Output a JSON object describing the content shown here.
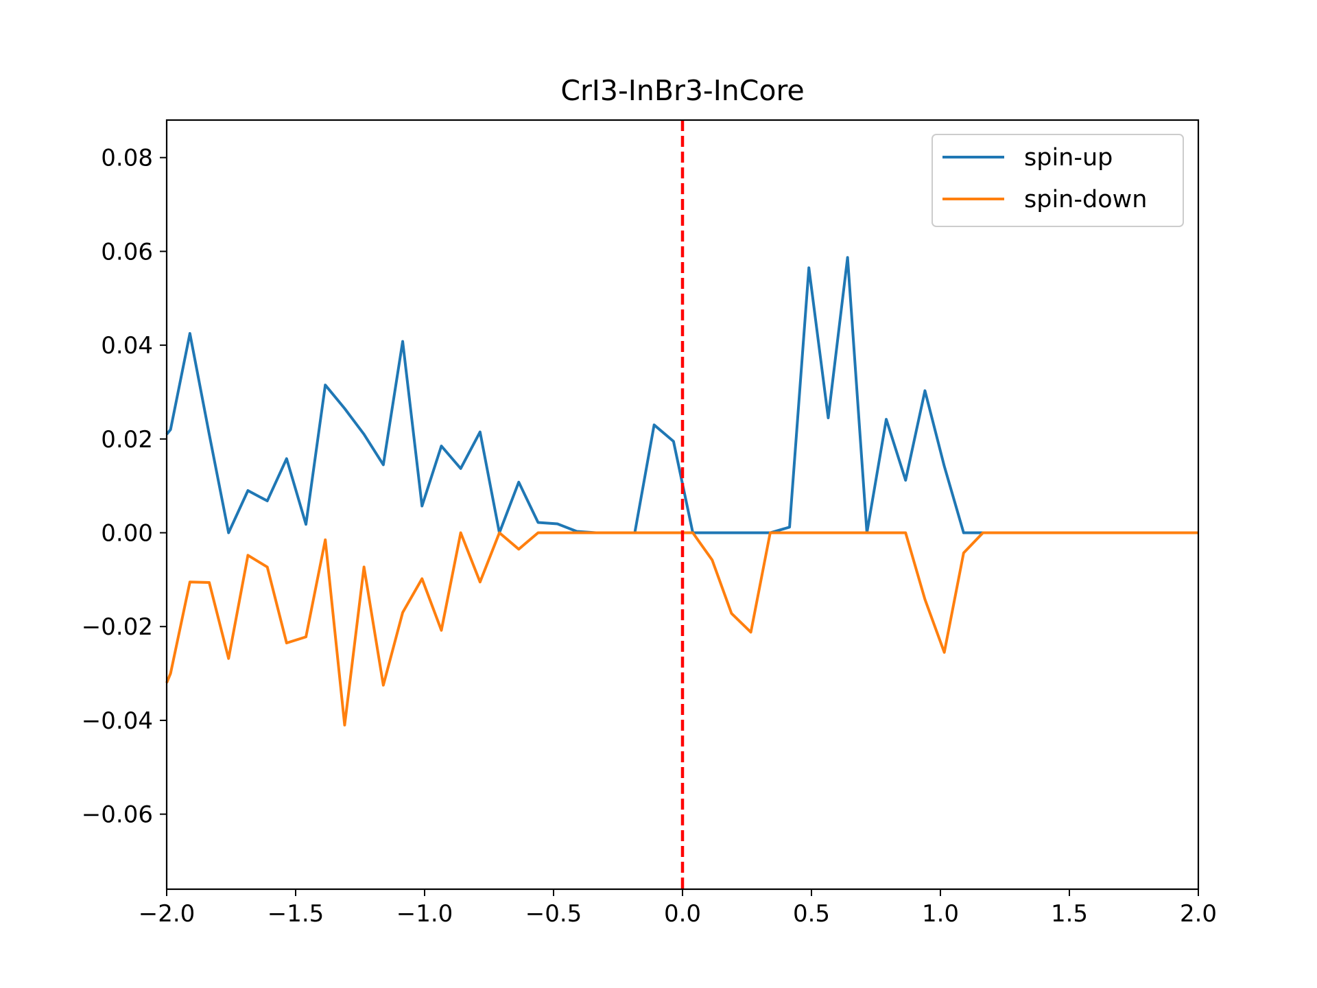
{
  "chart_data": {
    "type": "line",
    "title": "CrI3-InBr3-InCore",
    "xlabel": "",
    "ylabel": "",
    "xlim": [
      -2.0,
      2.0
    ],
    "ylim": [
      -0.076,
      0.088
    ],
    "xticks": [
      -2.0,
      -1.5,
      -1.0,
      -0.5,
      0.0,
      0.5,
      1.0,
      1.5,
      2.0
    ],
    "xtick_labels": [
      "−2.0",
      "−1.5",
      "−1.0",
      "−0.5",
      "0.0",
      "0.5",
      "1.0",
      "1.5",
      "2.0"
    ],
    "yticks": [
      0.08,
      0.06,
      0.04,
      0.02,
      0.0,
      -0.02,
      -0.04,
      -0.06
    ],
    "ytick_labels": [
      "0.08",
      "0.06",
      "0.04",
      "0.02",
      "0.00",
      "−0.02",
      "−0.04",
      "−0.06"
    ],
    "grid": false,
    "legend_position": "top-right",
    "vline": {
      "x": 0.0,
      "color": "#ff0000",
      "style": "dashed"
    },
    "series": [
      {
        "name": "spin-up",
        "color": "#1f77b4",
        "x": [
          -2.0,
          -1.985,
          -1.91,
          -1.835,
          -1.76,
          -1.685,
          -1.61,
          -1.535,
          -1.46,
          -1.385,
          -1.31,
          -1.235,
          -1.16,
          -1.085,
          -1.01,
          -0.935,
          -0.86,
          -0.785,
          -0.71,
          -0.635,
          -0.56,
          -0.485,
          -0.41,
          -0.335,
          -0.26,
          -0.185,
          -0.11,
          -0.035,
          0.04,
          0.115,
          0.19,
          0.265,
          0.34,
          0.415,
          0.49,
          0.565,
          0.64,
          0.715,
          0.79,
          0.865,
          0.94,
          1.015,
          1.09,
          1.165,
          1.24,
          1.315,
          1.39,
          1.465,
          1.54,
          1.615,
          1.69,
          1.765,
          1.84,
          1.915,
          1.99,
          2.0
        ],
        "y": [
          0.021,
          0.022,
          0.0425,
          0.021,
          0.0,
          0.009,
          0.0068,
          0.0158,
          0.0018,
          0.0315,
          0.0265,
          0.021,
          0.0145,
          0.0408,
          0.0057,
          0.0185,
          0.0137,
          0.0215,
          0.0,
          0.0108,
          0.0022,
          0.0019,
          0.0003,
          0.0,
          0.0,
          0.0,
          0.023,
          0.0195,
          0.0,
          0.0,
          0.0,
          0.0,
          0.0,
          0.0012,
          0.0565,
          0.0245,
          0.0587,
          0.0,
          0.0242,
          0.0112,
          0.0303,
          0.0142,
          0.0,
          0.0,
          0.0,
          0.0,
          0.0,
          0.0,
          0.0,
          0.0,
          0.0,
          0.0,
          0.0,
          0.0,
          0.0,
          0.0
        ]
      },
      {
        "name": "spin-down",
        "color": "#ff7f0e",
        "x": [
          -2.0,
          -1.985,
          -1.91,
          -1.835,
          -1.76,
          -1.685,
          -1.61,
          -1.535,
          -1.46,
          -1.385,
          -1.31,
          -1.235,
          -1.16,
          -1.085,
          -1.01,
          -0.935,
          -0.86,
          -0.785,
          -0.71,
          -0.635,
          -0.56,
          -0.485,
          -0.41,
          -0.335,
          -0.26,
          -0.185,
          -0.11,
          -0.035,
          0.04,
          0.115,
          0.19,
          0.265,
          0.34,
          0.415,
          0.49,
          0.565,
          0.64,
          0.715,
          0.79,
          0.865,
          0.94,
          1.015,
          1.09,
          1.165,
          1.24,
          1.315,
          1.39,
          1.465,
          1.54,
          1.615,
          1.69,
          1.765,
          1.84,
          1.915,
          1.99,
          2.0
        ],
        "y": [
          -0.032,
          -0.03,
          -0.0105,
          -0.0106,
          -0.0268,
          -0.0048,
          -0.0073,
          -0.0235,
          -0.0222,
          -0.0015,
          -0.041,
          -0.0073,
          -0.0325,
          -0.017,
          -0.0098,
          -0.0208,
          0.0,
          -0.0105,
          0.0,
          -0.0035,
          0.0,
          0.0,
          0.0,
          0.0,
          0.0,
          0.0,
          0.0,
          0.0,
          0.0,
          -0.0058,
          -0.0172,
          -0.0212,
          0.0,
          0.0,
          0.0,
          0.0,
          0.0,
          0.0,
          0.0,
          0.0,
          -0.0142,
          -0.0255,
          -0.0043,
          0.0,
          0.0,
          0.0,
          0.0,
          0.0,
          0.0,
          0.0,
          0.0,
          0.0,
          0.0,
          0.0,
          0.0,
          0.0
        ]
      }
    ]
  }
}
